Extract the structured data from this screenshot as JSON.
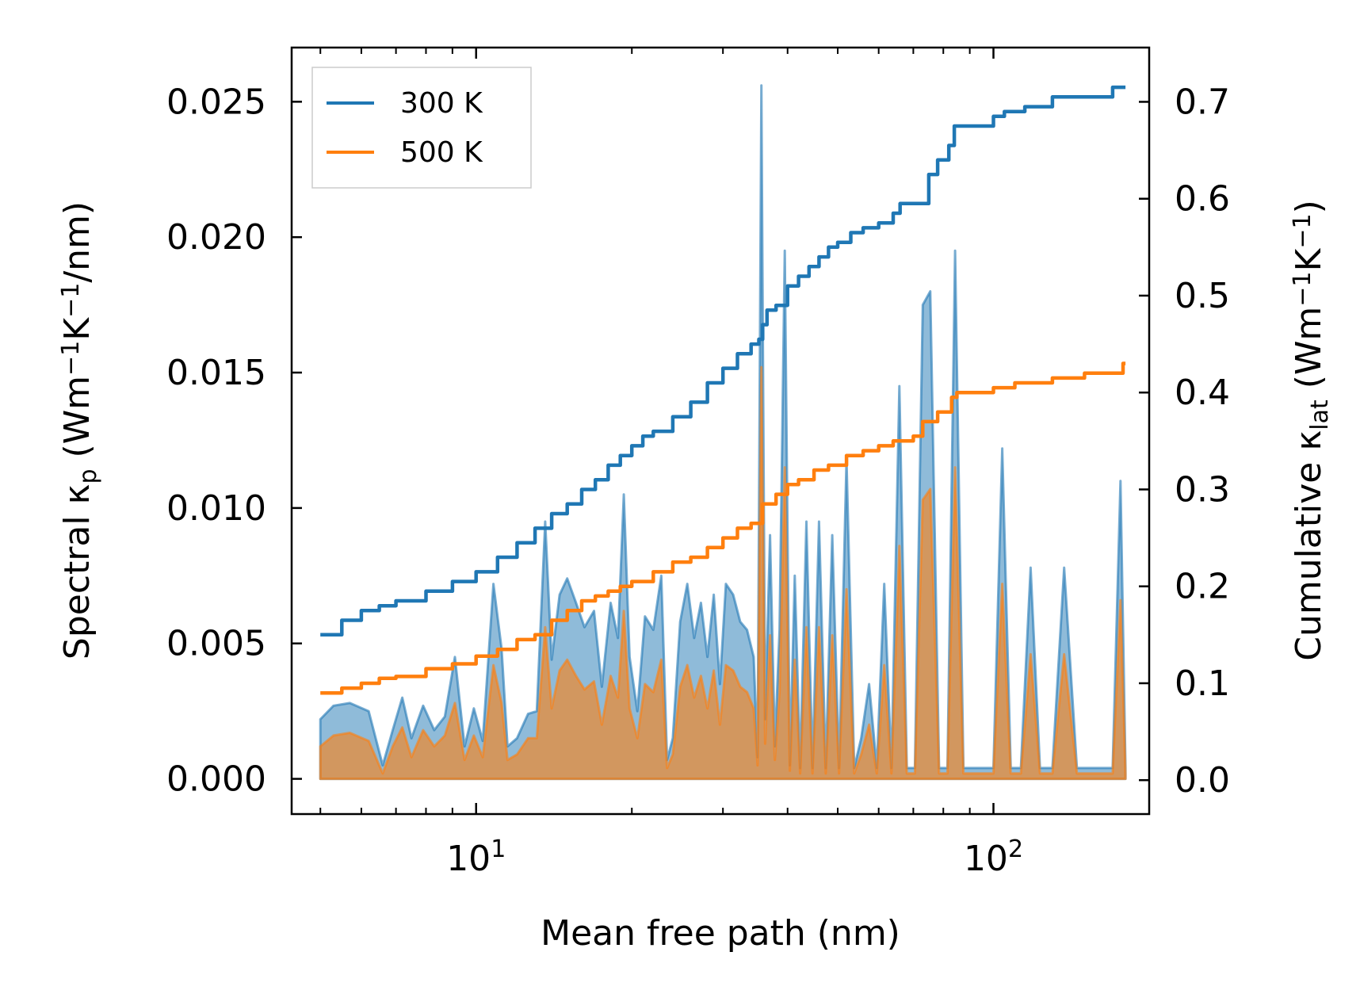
{
  "chart_data": {
    "type": "line",
    "xscale": "log",
    "xlim": [
      4.4,
      200
    ],
    "xticks": [
      {
        "value": 10,
        "base": "10",
        "exp": "1"
      },
      {
        "value": 100,
        "base": "10",
        "exp": "2"
      }
    ],
    "xlabel": "Mean free path (nm)",
    "left_axis": {
      "label_prefix": "Spectral κ",
      "label_sub": "p",
      "label_suffix": " (Wm",
      "label_sup1": "−1",
      "label_mid": "K",
      "label_sup2": "−1",
      "label_end": "/nm)",
      "ylim": [
        -0.0013,
        0.027
      ],
      "ticks": [
        "0.000",
        "0.005",
        "0.010",
        "0.015",
        "0.020",
        "0.025"
      ],
      "tick_values": [
        0,
        0.005,
        0.01,
        0.015,
        0.02,
        0.025
      ]
    },
    "right_axis": {
      "label_prefix": "Cumulative κ",
      "label_sub": "lat",
      "label_suffix": " (Wm",
      "label_sup1": "−1",
      "label_mid": "K",
      "label_sup2": "−1",
      "label_end": ")",
      "ylim": [
        -0.035,
        0.756
      ],
      "ticks": [
        "0.0",
        "0.1",
        "0.2",
        "0.3",
        "0.4",
        "0.5",
        "0.6",
        "0.7"
      ],
      "tick_values": [
        0,
        0.1,
        0.2,
        0.3,
        0.4,
        0.5,
        0.6,
        0.7
      ]
    },
    "legend": {
      "position": "top-left",
      "entries": [
        "300 K",
        "500 K"
      ]
    },
    "series": [
      {
        "name": "300 K",
        "color": "#1f77b4",
        "cumulative_right_axis": [
          [
            5.0,
            0.15
          ],
          [
            5.5,
            0.165
          ],
          [
            6.0,
            0.175
          ],
          [
            6.5,
            0.18
          ],
          [
            7.0,
            0.185
          ],
          [
            8.0,
            0.195
          ],
          [
            9.0,
            0.205
          ],
          [
            10.0,
            0.215
          ],
          [
            11.0,
            0.23
          ],
          [
            12.0,
            0.245
          ],
          [
            13.0,
            0.26
          ],
          [
            14.0,
            0.275
          ],
          [
            15.0,
            0.285
          ],
          [
            16.0,
            0.3
          ],
          [
            17.0,
            0.31
          ],
          [
            18.0,
            0.325
          ],
          [
            19.0,
            0.335
          ],
          [
            20.0,
            0.345
          ],
          [
            21.0,
            0.355
          ],
          [
            22.0,
            0.36
          ],
          [
            24.0,
            0.375
          ],
          [
            26.0,
            0.39
          ],
          [
            28.0,
            0.41
          ],
          [
            30.0,
            0.425
          ],
          [
            32.0,
            0.44
          ],
          [
            34.0,
            0.45
          ],
          [
            35.2,
            0.455
          ],
          [
            35.8,
            0.47
          ],
          [
            36.5,
            0.485
          ],
          [
            38.0,
            0.49
          ],
          [
            40.0,
            0.51
          ],
          [
            42.0,
            0.52
          ],
          [
            44.0,
            0.53
          ],
          [
            46.0,
            0.54
          ],
          [
            48.0,
            0.55
          ],
          [
            50.0,
            0.555
          ],
          [
            53.0,
            0.565
          ],
          [
            56.0,
            0.57
          ],
          [
            60.0,
            0.575
          ],
          [
            64.0,
            0.585
          ],
          [
            66.0,
            0.595
          ],
          [
            71.0,
            0.595
          ],
          [
            75.0,
            0.625
          ],
          [
            78.0,
            0.64
          ],
          [
            82.0,
            0.655
          ],
          [
            84.0,
            0.675
          ],
          [
            95.0,
            0.675
          ],
          [
            100.0,
            0.685
          ],
          [
            105.0,
            0.69
          ],
          [
            115.0,
            0.695
          ],
          [
            130.0,
            0.705
          ],
          [
            160.0,
            0.705
          ],
          [
            170.0,
            0.715
          ],
          [
            180.0,
            0.715
          ]
        ],
        "spectral_left_axis": [
          [
            5.0,
            0.0022
          ],
          [
            5.3,
            0.0027
          ],
          [
            5.7,
            0.0028
          ],
          [
            6.2,
            0.0025
          ],
          [
            6.6,
            0.0005
          ],
          [
            6.9,
            0.0018
          ],
          [
            7.2,
            0.003
          ],
          [
            7.5,
            0.0015
          ],
          [
            7.9,
            0.0027
          ],
          [
            8.3,
            0.0018
          ],
          [
            8.7,
            0.0023
          ],
          [
            9.1,
            0.0045
          ],
          [
            9.5,
            0.0012
          ],
          [
            9.9,
            0.0026
          ],
          [
            10.3,
            0.0014
          ],
          [
            10.8,
            0.0072
          ],
          [
            11.2,
            0.0048
          ],
          [
            11.5,
            0.0012
          ],
          [
            12.0,
            0.0015
          ],
          [
            12.6,
            0.0024
          ],
          [
            13.1,
            0.0025
          ],
          [
            13.6,
            0.0095
          ],
          [
            14.0,
            0.0044
          ],
          [
            14.5,
            0.0068
          ],
          [
            15.0,
            0.0074
          ],
          [
            15.6,
            0.0065
          ],
          [
            16.2,
            0.0056
          ],
          [
            16.9,
            0.0062
          ],
          [
            17.5,
            0.0034
          ],
          [
            18.2,
            0.0065
          ],
          [
            18.8,
            0.0052
          ],
          [
            19.3,
            0.0105
          ],
          [
            19.8,
            0.0045
          ],
          [
            20.5,
            0.0025
          ],
          [
            21.2,
            0.006
          ],
          [
            22.0,
            0.0055
          ],
          [
            22.8,
            0.0075
          ],
          [
            23.4,
            0.0007
          ],
          [
            24.0,
            0.0015
          ],
          [
            24.8,
            0.0058
          ],
          [
            25.6,
            0.0072
          ],
          [
            26.4,
            0.0052
          ],
          [
            27.2,
            0.0065
          ],
          [
            28.0,
            0.0045
          ],
          [
            28.8,
            0.0068
          ],
          [
            29.6,
            0.0035
          ],
          [
            30.4,
            0.0072
          ],
          [
            31.4,
            0.0068
          ],
          [
            32.4,
            0.0058
          ],
          [
            33.4,
            0.0055
          ],
          [
            34.4,
            0.0045
          ],
          [
            35.0,
            0.0008
          ],
          [
            35.6,
            0.0256
          ],
          [
            36.2,
            0.0022
          ],
          [
            37.0,
            0.009
          ],
          [
            37.8,
            0.0012
          ],
          [
            38.6,
            0.0055
          ],
          [
            39.5,
            0.0195
          ],
          [
            40.4,
            0.0005
          ],
          [
            41.3,
            0.0075
          ],
          [
            42.3,
            0.0004
          ],
          [
            43.5,
            0.0095
          ],
          [
            44.7,
            0.0004
          ],
          [
            46.0,
            0.0095
          ],
          [
            47.4,
            0.0004
          ],
          [
            48.8,
            0.009
          ],
          [
            50.3,
            0.0004
          ],
          [
            52.0,
            0.0118
          ],
          [
            53.8,
            0.0004
          ],
          [
            55.5,
            0.0015
          ],
          [
            57.5,
            0.0035
          ],
          [
            59.5,
            0.0004
          ],
          [
            61.5,
            0.0072
          ],
          [
            63.5,
            0.0004
          ],
          [
            65.8,
            0.0145
          ],
          [
            68.0,
            0.0004
          ],
          [
            70.5,
            0.0004
          ],
          [
            73.0,
            0.0175
          ],
          [
            75.5,
            0.018
          ],
          [
            78.5,
            0.0004
          ],
          [
            81.5,
            0.0004
          ],
          [
            84.3,
            0.0195
          ],
          [
            87.5,
            0.0004
          ],
          [
            100.0,
            0.0004
          ],
          [
            104.0,
            0.0122
          ],
          [
            108.0,
            0.0004
          ],
          [
            113.0,
            0.0004
          ],
          [
            118.0,
            0.0078
          ],
          [
            123.0,
            0.0004
          ],
          [
            130.0,
            0.0004
          ],
          [
            137.0,
            0.0078
          ],
          [
            145.0,
            0.0004
          ],
          [
            170.0,
            0.0004
          ],
          [
            176.0,
            0.011
          ],
          [
            180.0,
            0.0004
          ]
        ]
      },
      {
        "name": "500 K",
        "color": "#ff7f0e",
        "cumulative_right_axis": [
          [
            5.0,
            0.09
          ],
          [
            5.5,
            0.095
          ],
          [
            6.0,
            0.1
          ],
          [
            6.5,
            0.105
          ],
          [
            7.0,
            0.107
          ],
          [
            8.0,
            0.115
          ],
          [
            9.0,
            0.12
          ],
          [
            10.0,
            0.128
          ],
          [
            11.0,
            0.135
          ],
          [
            12.0,
            0.145
          ],
          [
            13.0,
            0.15
          ],
          [
            14.0,
            0.165
          ],
          [
            15.0,
            0.175
          ],
          [
            16.0,
            0.185
          ],
          [
            17.0,
            0.19
          ],
          [
            18.0,
            0.195
          ],
          [
            19.0,
            0.2
          ],
          [
            20.0,
            0.205
          ],
          [
            22.0,
            0.215
          ],
          [
            24.0,
            0.225
          ],
          [
            26.0,
            0.23
          ],
          [
            28.0,
            0.24
          ],
          [
            30.0,
            0.25
          ],
          [
            32.0,
            0.26
          ],
          [
            34.0,
            0.265
          ],
          [
            35.8,
            0.285
          ],
          [
            38.0,
            0.295
          ],
          [
            40.0,
            0.305
          ],
          [
            42.0,
            0.31
          ],
          [
            45.0,
            0.32
          ],
          [
            48.0,
            0.325
          ],
          [
            52.0,
            0.335
          ],
          [
            56.0,
            0.34
          ],
          [
            60.0,
            0.345
          ],
          [
            64.0,
            0.35
          ],
          [
            70.0,
            0.355
          ],
          [
            73.0,
            0.37
          ],
          [
            78.0,
            0.38
          ],
          [
            83.0,
            0.395
          ],
          [
            85.0,
            0.4
          ],
          [
            95.0,
            0.4
          ],
          [
            100.0,
            0.405
          ],
          [
            110.0,
            0.41
          ],
          [
            130.0,
            0.415
          ],
          [
            150.0,
            0.42
          ],
          [
            175.0,
            0.42
          ],
          [
            178.0,
            0.43
          ],
          [
            180.0,
            0.43
          ]
        ],
        "spectral_left_axis": [
          [
            5.0,
            0.0012
          ],
          [
            5.3,
            0.0016
          ],
          [
            5.7,
            0.0017
          ],
          [
            6.2,
            0.0014
          ],
          [
            6.6,
            0.0002
          ],
          [
            6.9,
            0.0012
          ],
          [
            7.2,
            0.0019
          ],
          [
            7.5,
            0.0008
          ],
          [
            7.9,
            0.0018
          ],
          [
            8.3,
            0.0012
          ],
          [
            8.7,
            0.0016
          ],
          [
            9.1,
            0.0028
          ],
          [
            9.5,
            0.0007
          ],
          [
            9.9,
            0.0016
          ],
          [
            10.3,
            0.0008
          ],
          [
            10.8,
            0.0042
          ],
          [
            11.2,
            0.0028
          ],
          [
            11.5,
            0.0007
          ],
          [
            12.0,
            0.0009
          ],
          [
            12.6,
            0.0015
          ],
          [
            13.1,
            0.0015
          ],
          [
            13.6,
            0.0056
          ],
          [
            14.0,
            0.0026
          ],
          [
            14.5,
            0.004
          ],
          [
            15.0,
            0.0044
          ],
          [
            15.6,
            0.0038
          ],
          [
            16.2,
            0.0033
          ],
          [
            16.9,
            0.0036
          ],
          [
            17.5,
            0.002
          ],
          [
            18.2,
            0.0038
          ],
          [
            18.8,
            0.003
          ],
          [
            19.3,
            0.0062
          ],
          [
            19.8,
            0.0026
          ],
          [
            20.5,
            0.0015
          ],
          [
            21.2,
            0.0035
          ],
          [
            22.0,
            0.0032
          ],
          [
            22.8,
            0.0044
          ],
          [
            23.4,
            0.0004
          ],
          [
            24.0,
            0.0009
          ],
          [
            24.8,
            0.0034
          ],
          [
            25.6,
            0.0042
          ],
          [
            26.4,
            0.003
          ],
          [
            27.2,
            0.0038
          ],
          [
            28.0,
            0.0026
          ],
          [
            28.8,
            0.004
          ],
          [
            29.6,
            0.002
          ],
          [
            30.4,
            0.0042
          ],
          [
            31.4,
            0.004
          ],
          [
            32.4,
            0.0034
          ],
          [
            33.4,
            0.0032
          ],
          [
            34.4,
            0.0026
          ],
          [
            35.0,
            0.0005
          ],
          [
            35.6,
            0.0152
          ],
          [
            36.2,
            0.0013
          ],
          [
            37.0,
            0.0053
          ],
          [
            37.8,
            0.0007
          ],
          [
            38.6,
            0.0032
          ],
          [
            39.5,
            0.0115
          ],
          [
            40.4,
            0.0003
          ],
          [
            41.3,
            0.0044
          ],
          [
            42.3,
            0.0002
          ],
          [
            43.5,
            0.0056
          ],
          [
            44.7,
            0.0002
          ],
          [
            46.0,
            0.0056
          ],
          [
            47.4,
            0.0002
          ],
          [
            48.8,
            0.0053
          ],
          [
            50.3,
            0.0002
          ],
          [
            52.0,
            0.007
          ],
          [
            53.8,
            0.0002
          ],
          [
            55.5,
            0.0009
          ],
          [
            57.5,
            0.002
          ],
          [
            59.5,
            0.0002
          ],
          [
            61.5,
            0.0042
          ],
          [
            63.5,
            0.0002
          ],
          [
            65.8,
            0.0086
          ],
          [
            68.0,
            0.0002
          ],
          [
            70.5,
            0.0002
          ],
          [
            73.0,
            0.0103
          ],
          [
            75.5,
            0.0107
          ],
          [
            78.5,
            0.0002
          ],
          [
            81.5,
            0.0002
          ],
          [
            84.3,
            0.0115
          ],
          [
            87.5,
            0.0002
          ],
          [
            100.0,
            0.0002
          ],
          [
            104.0,
            0.0072
          ],
          [
            108.0,
            0.0002
          ],
          [
            113.0,
            0.0002
          ],
          [
            118.0,
            0.0046
          ],
          [
            123.0,
            0.0002
          ],
          [
            130.0,
            0.0002
          ],
          [
            137.0,
            0.0046
          ],
          [
            145.0,
            0.0002
          ],
          [
            170.0,
            0.0002
          ],
          [
            176.0,
            0.0066
          ],
          [
            180.0,
            0.0002
          ]
        ]
      }
    ]
  }
}
